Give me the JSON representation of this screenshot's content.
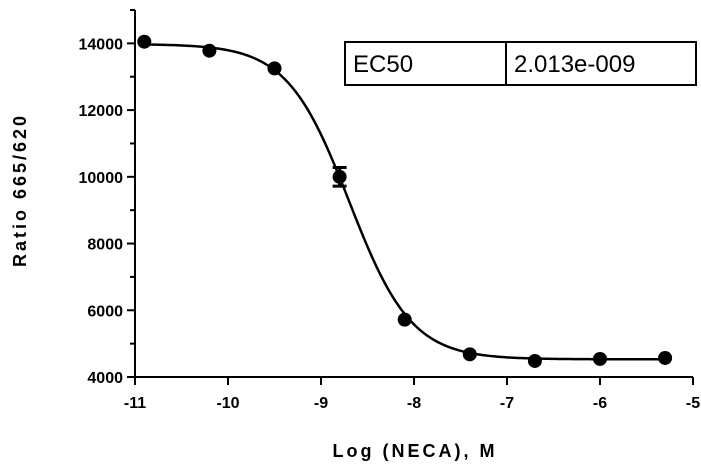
{
  "chart_data": {
    "type": "scatter",
    "title": "",
    "xlabel": "Log (NECA), M",
    "ylabel": "Ratio 665/620",
    "xlim": [
      -11,
      -5
    ],
    "ylim": [
      4000,
      15000
    ],
    "x_ticks": [
      -11,
      -10,
      -9,
      -8,
      -7,
      -6,
      -5
    ],
    "y_ticks": [
      4000,
      6000,
      8000,
      10000,
      12000,
      14000
    ],
    "grid": false,
    "series": [
      {
        "points": [
          {
            "x": -10.9,
            "y": 14050
          },
          {
            "x": -10.2,
            "y": 13780
          },
          {
            "x": -9.5,
            "y": 13250
          },
          {
            "x": -8.8,
            "y": 10000,
            "err": 280
          },
          {
            "x": -8.1,
            "y": 5720
          },
          {
            "x": -7.4,
            "y": 4680
          },
          {
            "x": -6.7,
            "y": 4480
          },
          {
            "x": -6.0,
            "y": 4540
          },
          {
            "x": -5.3,
            "y": 4570
          }
        ]
      }
    ],
    "fit": {
      "model": "sigmoidal dose-response",
      "top": 13980,
      "bottom": 4530,
      "log_ec50": -8.696,
      "hill_slope": -1.3
    },
    "annotation_table": {
      "label": "EC50",
      "value": "2.013e-009"
    },
    "colors": {
      "axis": "#000000",
      "points": "#000000",
      "curve": "#000000"
    }
  }
}
